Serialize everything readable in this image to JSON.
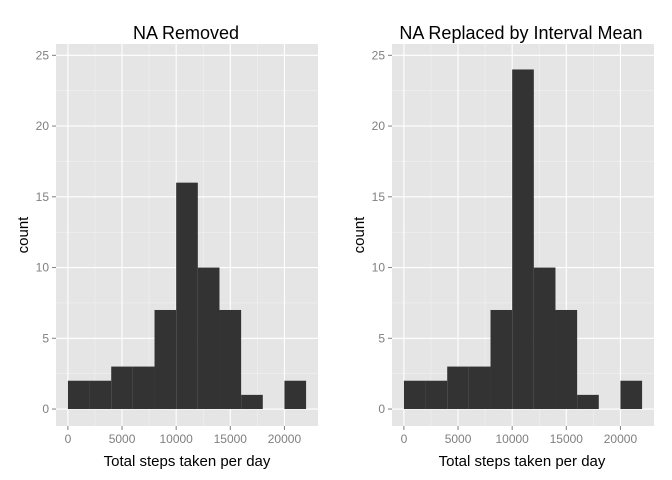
{
  "colors": {
    "panel_background": "#e5e5e5",
    "gridline_major": "#ffffff",
    "gridline_minor": "#f2f2f2",
    "bar_fill": "#333333",
    "tick_color": "#7f7f7f",
    "text_color": "#000000"
  },
  "chart_data": [
    {
      "type": "bar",
      "title": "NA Removed",
      "xlabel": "Total steps taken per day",
      "ylabel": "count",
      "xlim": [
        -1100,
        23100
      ],
      "ylim": [
        -1.2,
        25.8
      ],
      "x_ticks": [
        0,
        5000,
        10000,
        15000,
        20000
      ],
      "y_ticks": [
        0,
        5,
        10,
        15,
        20,
        25
      ],
      "grid": true,
      "legend": "none",
      "bin_edges": [
        0,
        2000,
        4000,
        6000,
        8000,
        10000,
        12000,
        14000,
        16000,
        18000,
        20000,
        22000
      ],
      "values": [
        2,
        2,
        3,
        3,
        7,
        16,
        10,
        7,
        1,
        0,
        2
      ]
    },
    {
      "type": "bar",
      "title": "NA Replaced by Interval Mean",
      "xlabel": "Total steps taken per day",
      "ylabel": "count",
      "xlim": [
        -1100,
        23100
      ],
      "ylim": [
        -1.2,
        25.8
      ],
      "x_ticks": [
        0,
        5000,
        10000,
        15000,
        20000
      ],
      "y_ticks": [
        0,
        5,
        10,
        15,
        20,
        25
      ],
      "grid": true,
      "legend": "none",
      "bin_edges": [
        0,
        2000,
        4000,
        6000,
        8000,
        10000,
        12000,
        14000,
        16000,
        18000,
        20000,
        22000
      ],
      "values": [
        2,
        2,
        3,
        3,
        7,
        24,
        10,
        7,
        1,
        0,
        2
      ]
    }
  ]
}
